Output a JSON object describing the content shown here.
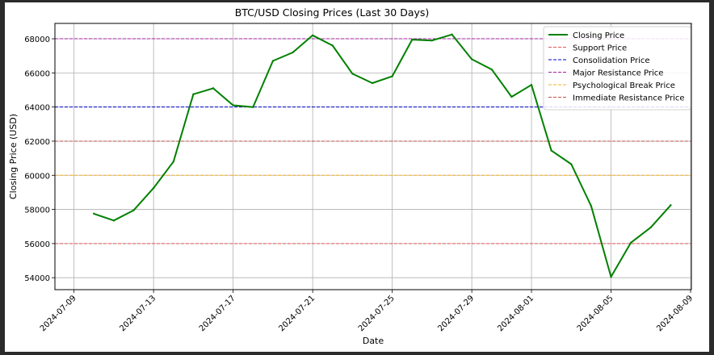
{
  "chart_data": {
    "type": "line",
    "title": "BTC/USD Closing Prices (Last 30 Days)",
    "xlabel": "Date",
    "ylabel": "Closing Price (USD)",
    "xlim": [
      "2024-07-09",
      "2024-08-09"
    ],
    "ylim": [
      53300,
      68900
    ],
    "grid": true,
    "legend_position": "top-right",
    "x_ticks": [
      "2024-07-09",
      "2024-07-13",
      "2024-07-17",
      "2024-07-21",
      "2024-07-25",
      "2024-07-29",
      "2024-08-01",
      "2024-08-05",
      "2024-08-09"
    ],
    "y_ticks": [
      "54000",
      "56000",
      "58000",
      "60000",
      "62000",
      "64000",
      "66000",
      "68000"
    ],
    "y_tick_values": [
      54000,
      56000,
      58000,
      60000,
      62000,
      64000,
      66000,
      68000
    ],
    "series": [
      {
        "name": "Closing Price",
        "color": "#008000",
        "x": [
          "2024-07-10",
          "2024-07-11",
          "2024-07-12",
          "2024-07-13",
          "2024-07-14",
          "2024-07-15",
          "2024-07-16",
          "2024-07-17",
          "2024-07-18",
          "2024-07-19",
          "2024-07-20",
          "2024-07-21",
          "2024-07-22",
          "2024-07-23",
          "2024-07-24",
          "2024-07-25",
          "2024-07-26",
          "2024-07-27",
          "2024-07-28",
          "2024-07-29",
          "2024-07-30",
          "2024-07-31",
          "2024-08-01",
          "2024-08-02",
          "2024-08-03",
          "2024-08-04",
          "2024-08-05",
          "2024-08-06",
          "2024-08-07",
          "2024-08-08"
        ],
        "y": [
          57750,
          57350,
          57950,
          59250,
          60800,
          64750,
          65100,
          64100,
          64000,
          66700,
          67200,
          68200,
          67600,
          65950,
          65400,
          65800,
          67950,
          67900,
          68250,
          66800,
          66200,
          64600,
          65300,
          61450,
          60650,
          58200,
          54050,
          56050,
          56950,
          58250
        ]
      }
    ],
    "hlines": [
      {
        "name": "Support Price",
        "value": 56000,
        "color": "#e45756"
      },
      {
        "name": "Consolidation Price",
        "value": 64000,
        "color": "#0000cc"
      },
      {
        "name": "Major Resistance Price",
        "value": 68000,
        "color": "#aa22aa"
      },
      {
        "name": "Psychological Break Price",
        "value": 60000,
        "color": "#f5b021"
      },
      {
        "name": "Immediate Resistance Price",
        "value": 62000,
        "color": "#c0504d"
      }
    ]
  }
}
